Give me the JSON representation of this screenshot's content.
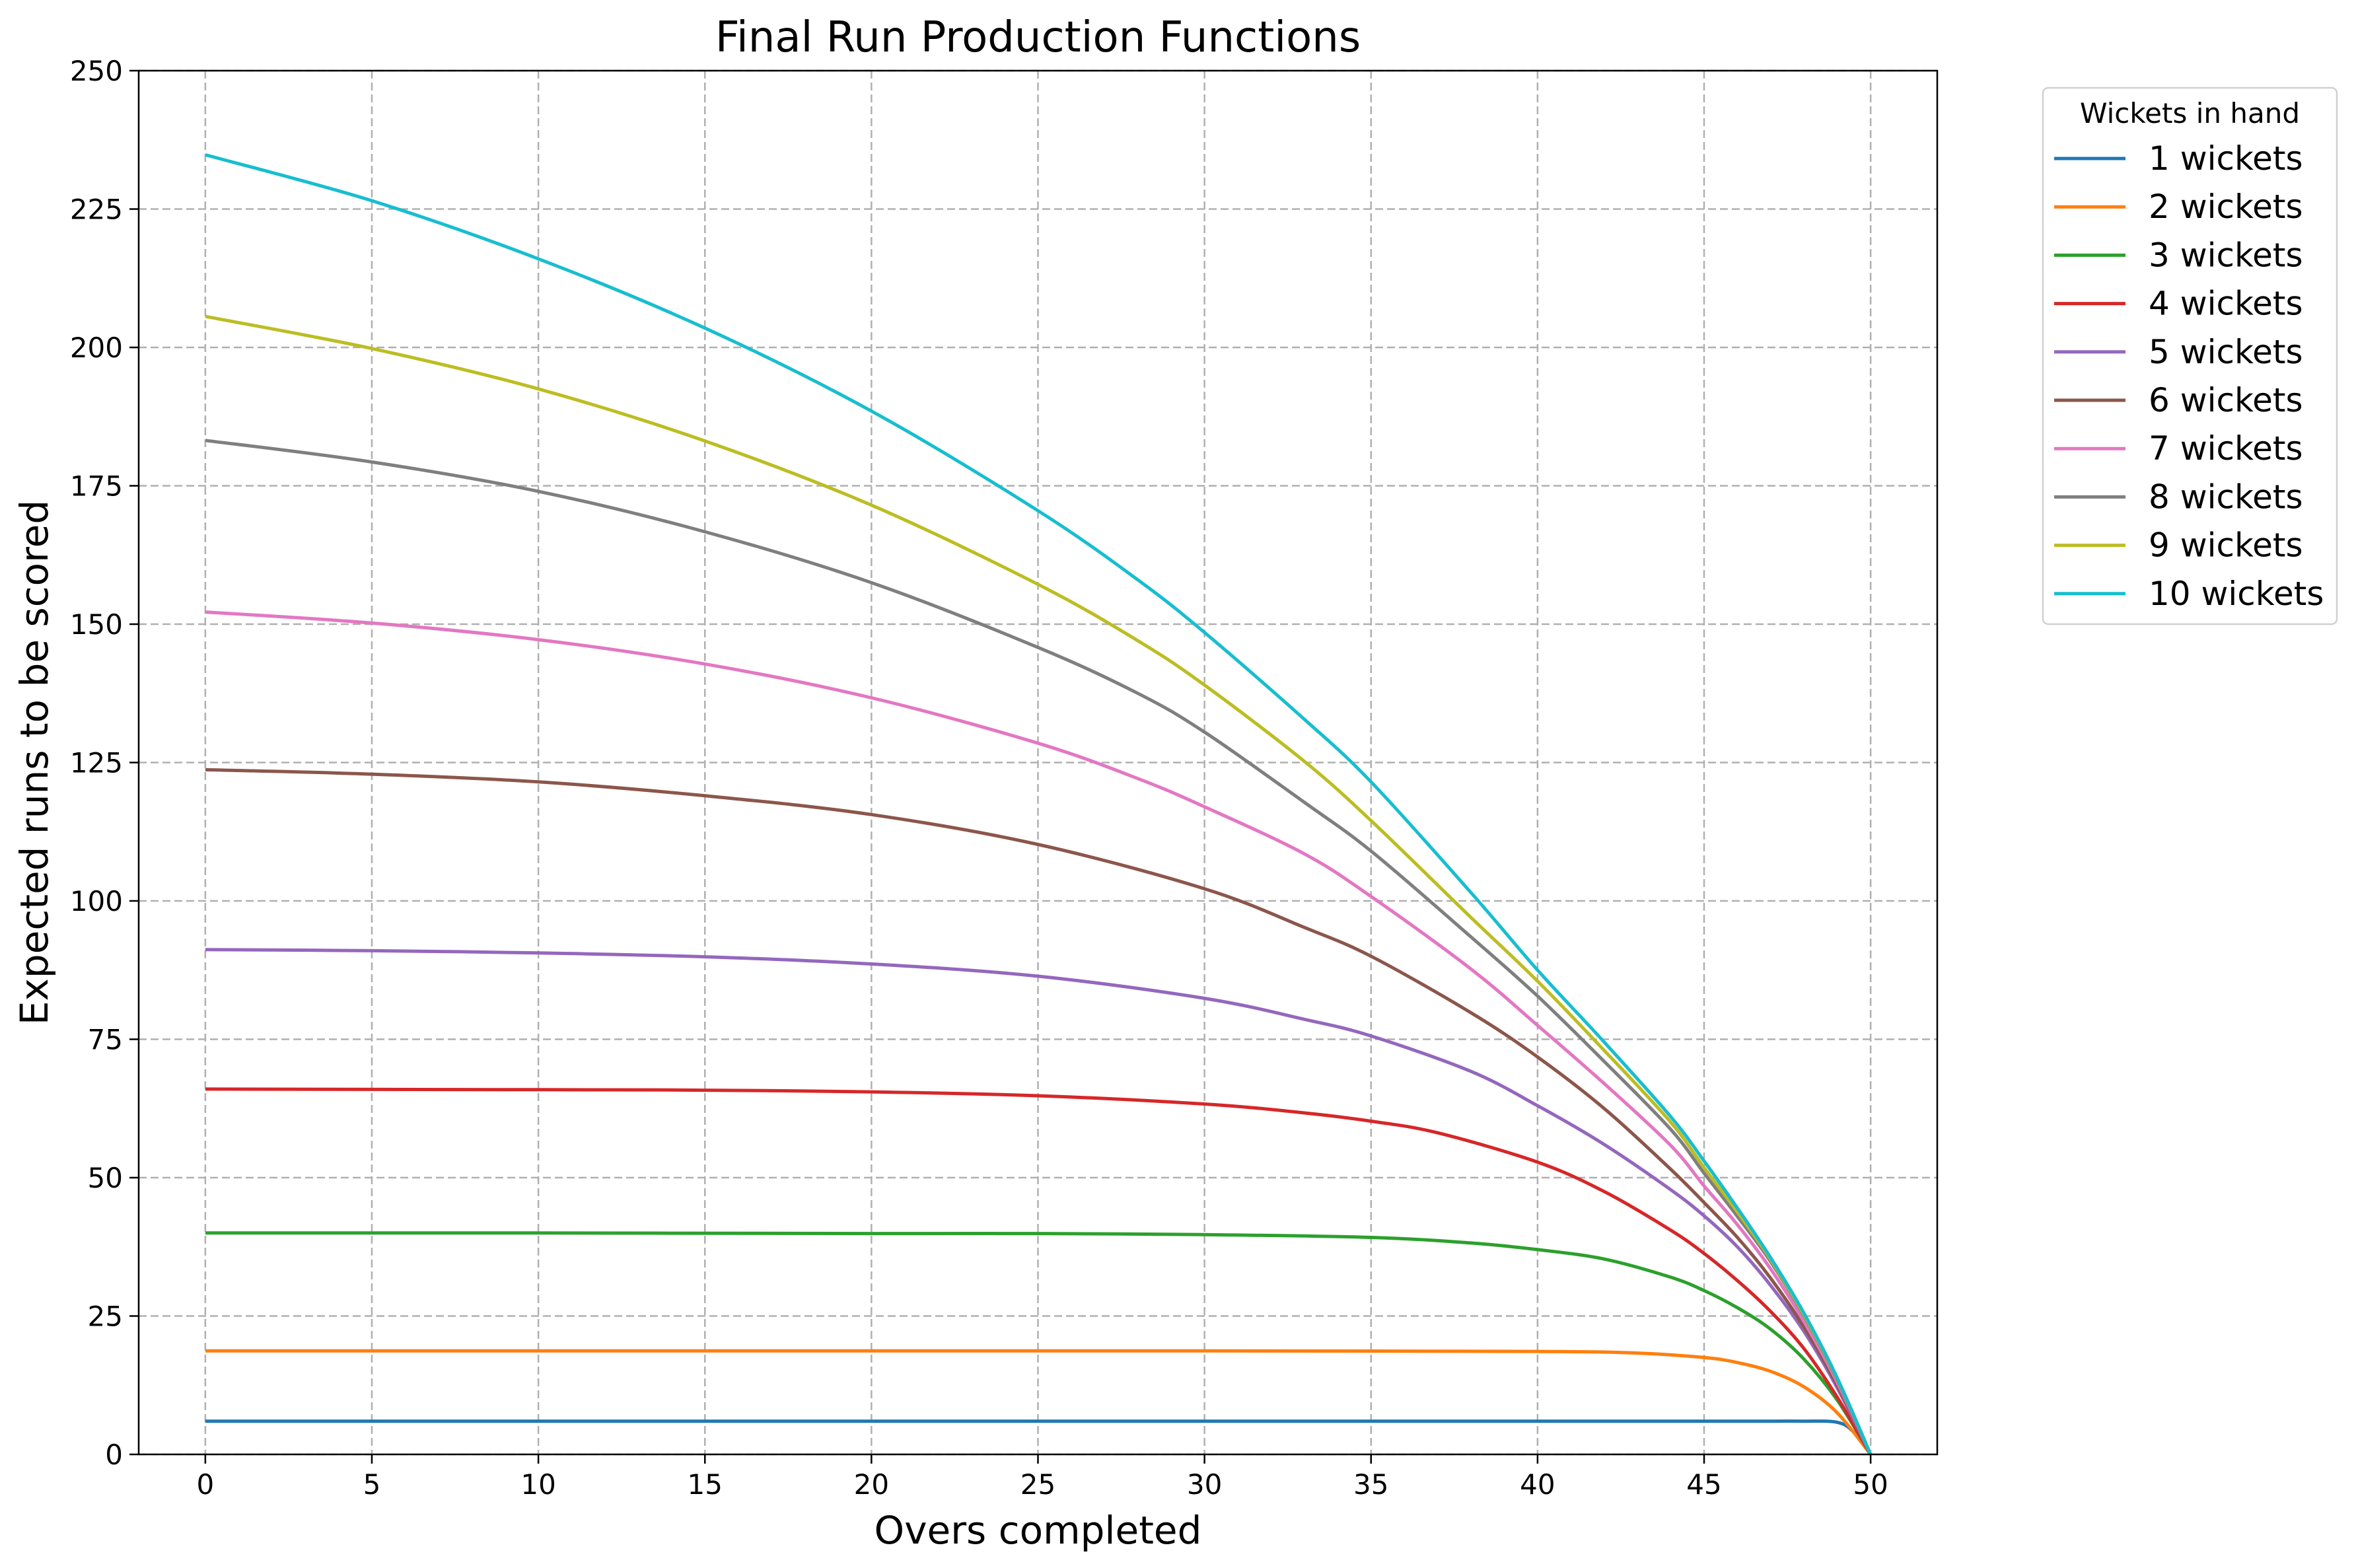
{
  "chart_data": {
    "type": "line",
    "title": "Final Run Production Functions",
    "xlabel": "Overs completed",
    "ylabel": "Expected runs to be scored",
    "xlim": [
      -2,
      52
    ],
    "ylim": [
      0,
      250
    ],
    "xticks": [
      "0",
      "5",
      "10",
      "15",
      "20",
      "25",
      "30",
      "35",
      "40",
      "45",
      "50"
    ],
    "yticks": [
      "0",
      "25",
      "50",
      "75",
      "100",
      "125",
      "150",
      "175",
      "200",
      "225",
      "250"
    ],
    "grid": true,
    "legend": {
      "title": "Wickets in hand",
      "placement": "outside top-right"
    },
    "series": [
      {
        "name": "1 wickets",
        "color": "#1f77b4",
        "x": [
          0,
          10,
          20,
          30,
          40,
          45,
          47,
          48,
          49,
          49.5,
          50
        ],
        "values": [
          6,
          6,
          6,
          6,
          6,
          6,
          6,
          6,
          5.8,
          4,
          0
        ]
      },
      {
        "name": "2 wickets",
        "color": "#ff7f0e",
        "x": [
          0,
          10,
          20,
          30,
          40,
          43,
          45,
          46,
          47,
          48,
          49,
          50
        ],
        "values": [
          18.7,
          18.7,
          18.7,
          18.7,
          18.6,
          18.3,
          17.5,
          16.6,
          15,
          12.2,
          7.5,
          0
        ]
      },
      {
        "name": "3 wickets",
        "color": "#2ca02c",
        "x": [
          0,
          10,
          20,
          25,
          30,
          35,
          38,
          40,
          42,
          44,
          45,
          46,
          47,
          48,
          49,
          50
        ],
        "values": [
          40,
          40,
          39.9,
          39.9,
          39.7,
          39.2,
          38.2,
          37,
          35.3,
          32,
          29.6,
          26.5,
          22.6,
          17.2,
          9.8,
          0
        ]
      },
      {
        "name": "4 wickets",
        "color": "#d62728",
        "x": [
          0,
          10,
          15,
          20,
          25,
          30,
          33,
          35,
          37,
          40,
          42,
          44,
          45,
          46,
          47,
          48,
          49,
          50
        ],
        "values": [
          66,
          65.9,
          65.8,
          65.5,
          64.8,
          63.3,
          61.7,
          60.2,
          58.1,
          52.8,
          47.5,
          40.5,
          36.3,
          31.4,
          25.8,
          19.1,
          10.3,
          0
        ]
      },
      {
        "name": "5 wickets",
        "color": "#9467bd",
        "x": [
          0,
          5,
          10,
          15,
          20,
          25,
          30,
          33,
          35,
          38,
          40,
          42,
          44,
          45,
          46,
          47,
          48,
          49,
          50
        ],
        "values": [
          91.2,
          91,
          90.6,
          89.9,
          88.6,
          86.4,
          82.4,
          78.6,
          75.6,
          69.2,
          63,
          56,
          47.8,
          43.1,
          37.5,
          30.5,
          22.2,
          12,
          0
        ]
      },
      {
        "name": "6 wickets",
        "color": "#8c564b",
        "x": [
          0,
          5,
          10,
          15,
          20,
          25,
          30,
          33,
          35,
          38,
          40,
          42,
          44,
          45,
          46,
          47,
          48,
          49,
          50
        ],
        "values": [
          123.7,
          122.9,
          121.5,
          119,
          115.6,
          110.2,
          102.2,
          95.2,
          90,
          79.8,
          71.8,
          62.5,
          51.5,
          45.5,
          39.2,
          31.8,
          23,
          12.5,
          0
        ]
      },
      {
        "name": "7 wickets",
        "color": "#e377c2",
        "x": [
          0,
          5,
          10,
          15,
          20,
          25,
          28,
          30,
          33,
          35,
          38,
          40,
          42,
          44,
          45,
          46,
          47,
          48,
          49,
          50
        ],
        "values": [
          152.2,
          150.2,
          147.2,
          142.8,
          136.7,
          128.5,
          122.1,
          117,
          108.5,
          100.8,
          87.7,
          77.5,
          67,
          55.8,
          48.5,
          41.5,
          33.5,
          24,
          13,
          0
        ]
      },
      {
        "name": "8 wickets",
        "color": "#7f7f7f",
        "x": [
          0,
          5,
          10,
          15,
          20,
          25,
          28,
          30,
          33,
          35,
          38,
          40,
          42,
          44,
          45,
          46,
          47,
          48,
          49,
          50
        ],
        "values": [
          183.2,
          179.3,
          174,
          166.7,
          157.5,
          145.8,
          137.5,
          130.5,
          117.8,
          109,
          93.5,
          82.8,
          71,
          58.7,
          50.8,
          43,
          34.8,
          25,
          13.5,
          0
        ]
      },
      {
        "name": "9 wickets",
        "color": "#bcbd22",
        "x": [
          0,
          5,
          10,
          15,
          20,
          25,
          28,
          30,
          33,
          35,
          38,
          40,
          42,
          44,
          45,
          46,
          47,
          48,
          49,
          50
        ],
        "values": [
          205.6,
          199.8,
          192.5,
          183.1,
          171.5,
          157.2,
          147,
          139,
          125.2,
          114.5,
          97,
          85.5,
          73,
          60,
          51.8,
          43.8,
          35.2,
          25.2,
          13.7,
          0
        ]
      },
      {
        "name": "10 wickets",
        "color": "#17becf",
        "x": [
          0,
          5,
          10,
          15,
          20,
          25,
          28,
          30,
          33,
          35,
          38,
          40,
          42,
          44,
          45,
          46,
          47,
          48,
          49,
          50
        ],
        "values": [
          234.8,
          226.5,
          216,
          203.5,
          188.5,
          170.5,
          158,
          148.5,
          132.8,
          121.5,
          101.5,
          87.5,
          74.5,
          61,
          53,
          44.5,
          35.5,
          25.5,
          13.8,
          0
        ]
      }
    ]
  }
}
